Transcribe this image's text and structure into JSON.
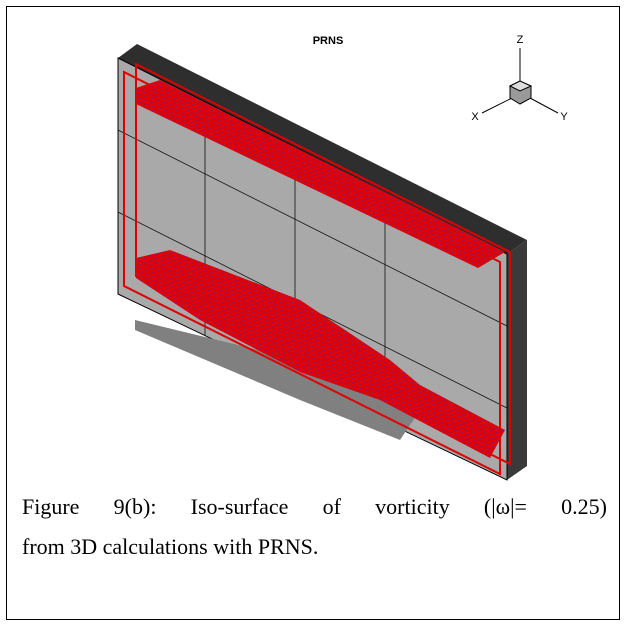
{
  "figure": {
    "title": "PRNS",
    "axes": {
      "z": "Z",
      "x": "X",
      "y": "Y"
    },
    "caption": {
      "line1": "Figure 9(b): Iso-surface of vorticity (|ω|= 0.25)",
      "line2": "from 3D calculations with PRNS."
    }
  }
}
